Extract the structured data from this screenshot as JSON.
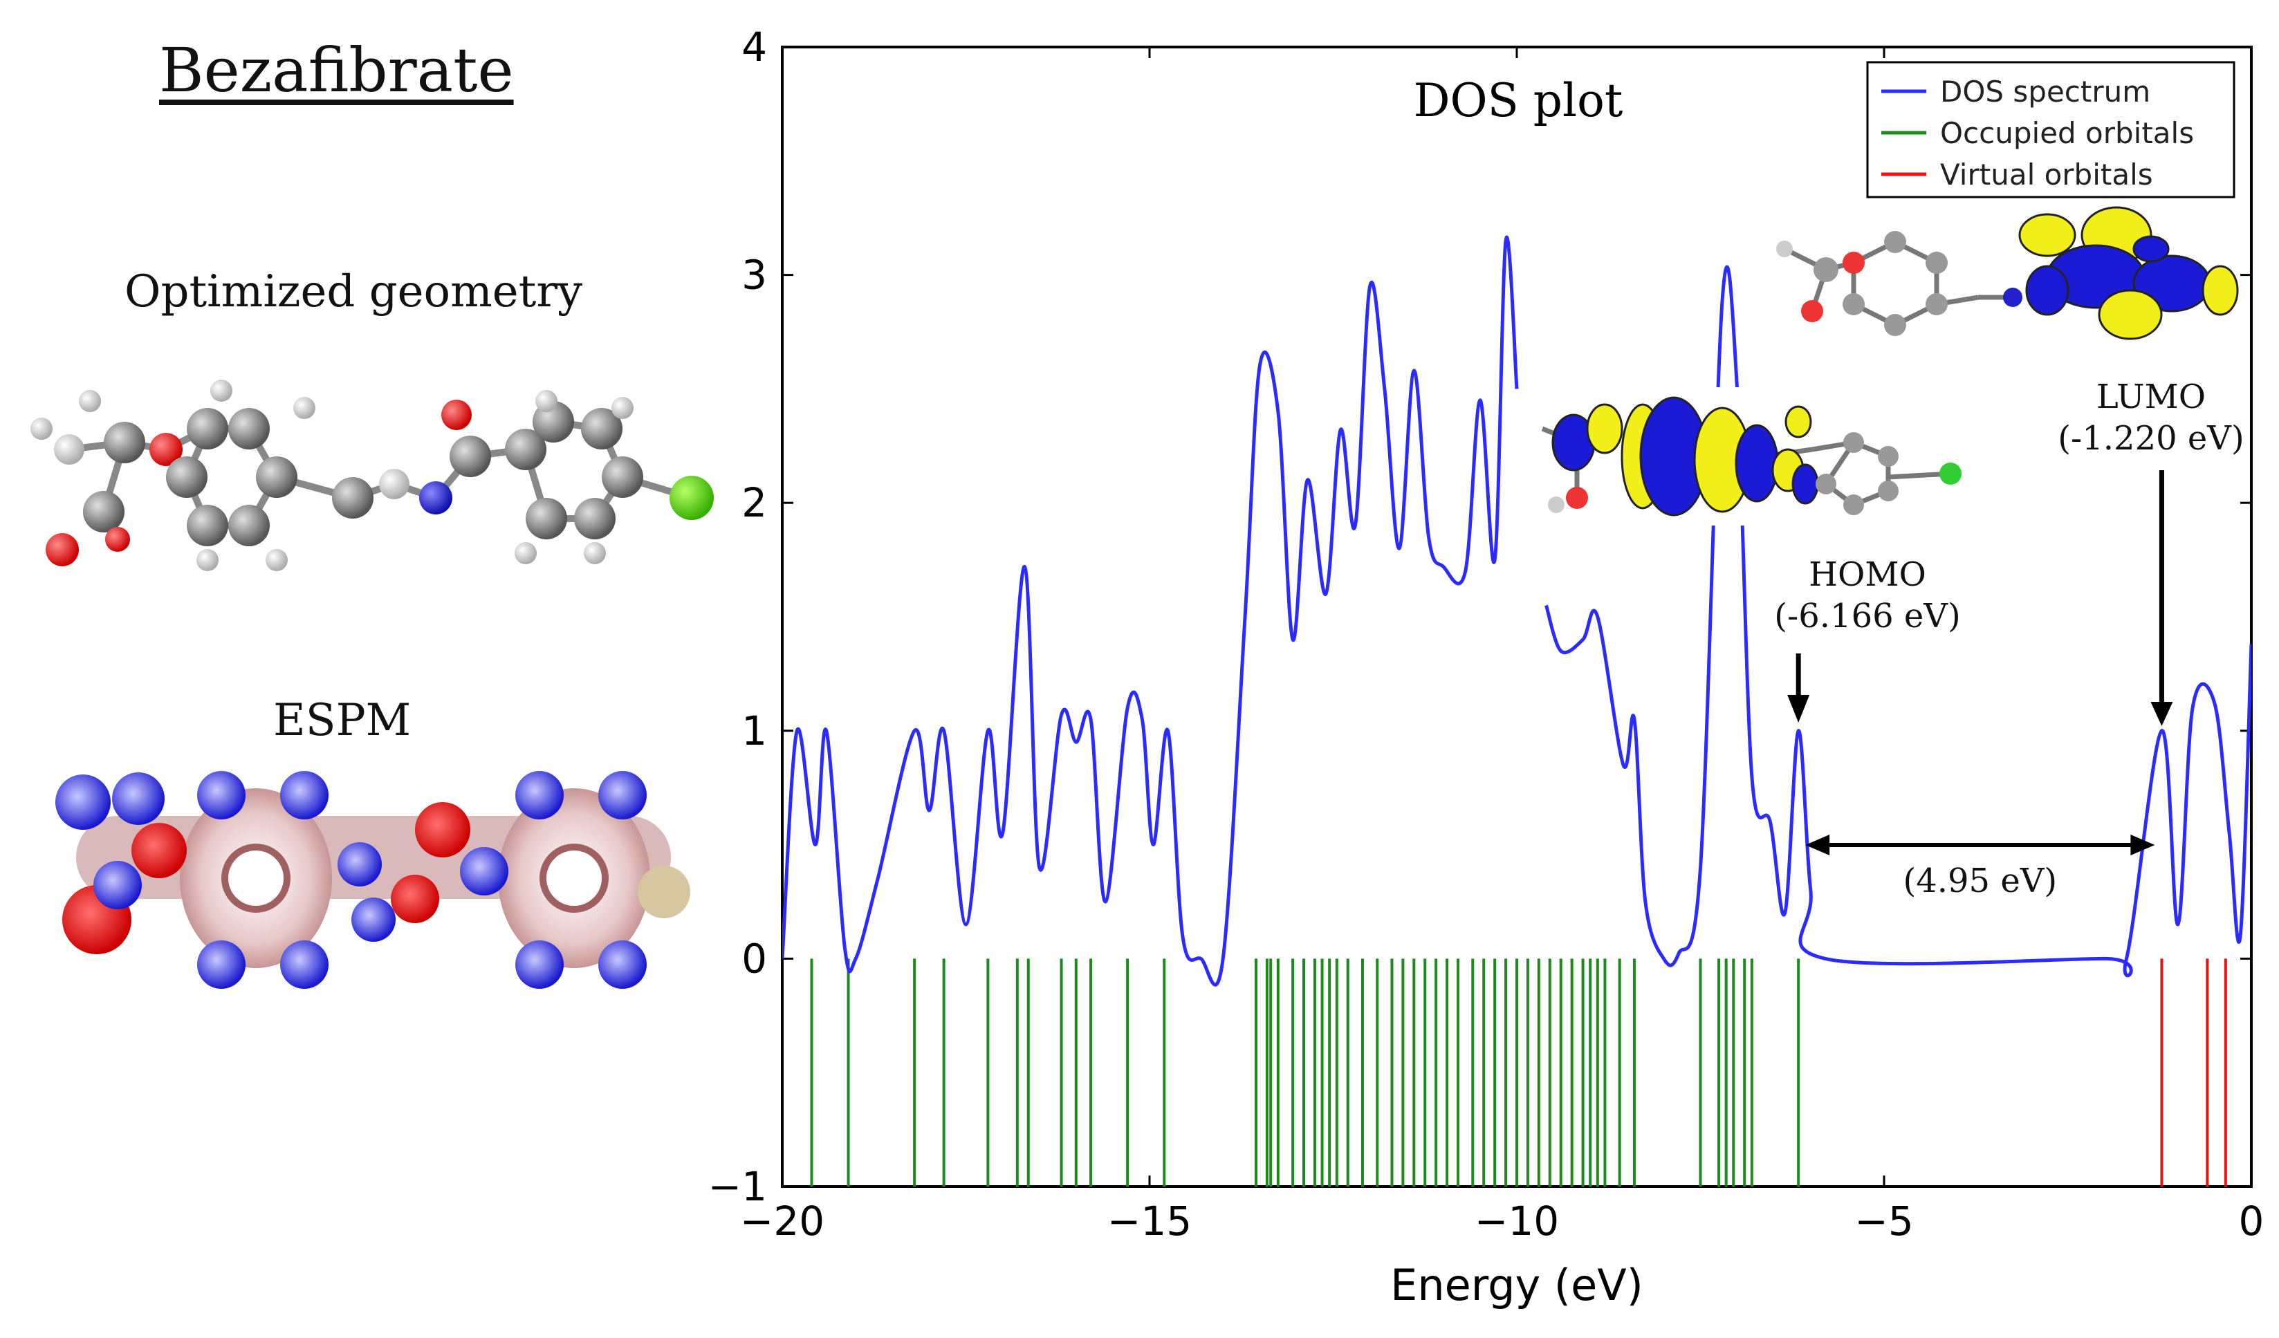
{
  "left_panel": {
    "title": "Bezafibrate",
    "geometry_label": "Optimized geometry",
    "espm_label": "ESPM"
  },
  "chart_data": {
    "type": "line",
    "title": "DOS plot",
    "xlabel": "Energy (eV)",
    "ylabel": "",
    "xlim": [
      -20,
      0
    ],
    "ylim": [
      -1,
      4
    ],
    "xticks": [
      -20,
      -15,
      -10,
      -5,
      0
    ],
    "yticks": [
      -1,
      0,
      1,
      2,
      3,
      4
    ],
    "xtick_labels": [
      "−20",
      "−15",
      "−10",
      "−5",
      "0"
    ],
    "ytick_labels": [
      "−1",
      "0",
      "1",
      "2",
      "3",
      "4"
    ],
    "grid": false,
    "legend_position": "top-right",
    "series": [
      {
        "name": "DOS spectrum",
        "color": "#2b2bff",
        "x": [
          -20,
          -19.8,
          -19.55,
          -19.4,
          -19.15,
          -19.0,
          -18.7,
          -18.2,
          -18.0,
          -17.8,
          -17.5,
          -17.2,
          -17.0,
          -16.7,
          -16.5,
          -16.2,
          -16.0,
          -15.8,
          -15.6,
          -15.3,
          -15.1,
          -14.95,
          -14.75,
          -14.55,
          -14.3,
          -14.0,
          -13.7,
          -13.5,
          -13.25,
          -13.05,
          -12.85,
          -12.6,
          -12.4,
          -12.2,
          -12.0,
          -11.8,
          -11.6,
          -11.4,
          -11.2,
          -11.0,
          -10.7,
          -10.5,
          -10.3,
          -10.15,
          -10.0
        ],
        "y": [
          0,
          1.0,
          0.5,
          1.0,
          0.05,
          0.0,
          0.35,
          1.0,
          0.65,
          1.0,
          0.15,
          1.0,
          0.55,
          1.72,
          0.4,
          1.07,
          0.95,
          1.05,
          0.25,
          1.1,
          1.05,
          0.5,
          1.0,
          0.1,
          0.0,
          0.0,
          1.5,
          2.6,
          2.4,
          1.4,
          2.1,
          1.6,
          2.32,
          1.9,
          2.95,
          2.5,
          1.8,
          2.58,
          1.85,
          1.72,
          1.7,
          2.45,
          1.75,
          3.15,
          2.5
        ]
      },
      {
        "name": "",
        "color": "#2b2bff",
        "x": [
          -9.6,
          -9.4,
          -9.1,
          -8.9,
          -8.55,
          -8.4,
          -8.25,
          -8.0,
          -7.8,
          -7.5,
          -7.2,
          -7.0,
          -6.8,
          -6.55,
          -6.35,
          -6.166,
          -6.0,
          -5.8,
          -2.0,
          -1.7,
          -1.22,
          -1.0,
          -0.8,
          -0.5,
          -0.3,
          -0.15,
          0.0
        ],
        "y": [
          1.55,
          1.35,
          1.4,
          1.5,
          0.85,
          1.05,
          0.25,
          0.0,
          0.02,
          0.4,
          2.9,
          2.5,
          0.8,
          0.6,
          0.2,
          1.0,
          0.3,
          0.0,
          0.0,
          0.0,
          1.0,
          0.15,
          1.1,
          1.12,
          0.55,
          0.1,
          1.38
        ]
      },
      {
        "name": "Occupied orbitals",
        "color": "#1e8a1e",
        "stick_energies": [
          -19.6,
          -19.1,
          -18.2,
          -17.8,
          -17.2,
          -16.8,
          -16.65,
          -16.2,
          -16.0,
          -15.8,
          -15.3,
          -14.8,
          -13.55,
          -13.4,
          -13.35,
          -13.25,
          -13.05,
          -12.9,
          -12.75,
          -12.65,
          -12.55,
          -12.45,
          -12.3,
          -12.1,
          -11.9,
          -11.7,
          -11.55,
          -11.4,
          -11.25,
          -11.1,
          -10.95,
          -10.8,
          -10.6,
          -10.45,
          -10.3,
          -10.15,
          -10.0,
          -9.85,
          -9.7,
          -9.55,
          -9.4,
          -9.25,
          -9.1,
          -9.0,
          -8.9,
          -8.8,
          -8.6,
          -8.4,
          -7.5,
          -7.25,
          -7.15,
          -7.05,
          -6.9,
          -6.8,
          -6.166
        ]
      },
      {
        "name": "Virtual orbitals",
        "color": "#ee1111",
        "stick_energies": [
          -1.22,
          -0.6,
          -0.35
        ]
      }
    ],
    "annotations": {
      "lumo_label": "LUMO",
      "lumo_value": "(-1.220 eV)",
      "homo_label": "HOMO",
      "homo_value": "(-6.166 eV)",
      "gap_label": "(4.95 eV)",
      "homo_energy": -6.166,
      "lumo_energy": -1.22
    }
  }
}
